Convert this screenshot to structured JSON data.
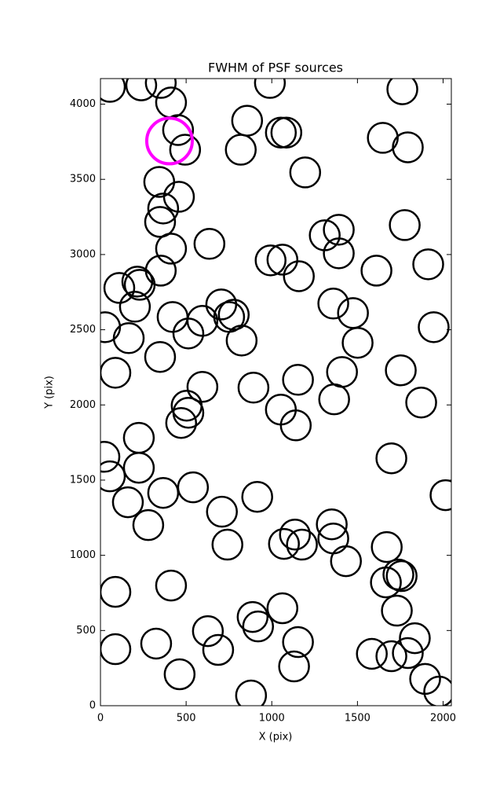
{
  "chart_data": {
    "type": "scatter",
    "title": "FWHM of PSF sources",
    "xlabel": "X (pix)",
    "ylabel": "Y (pix)",
    "xlim": [
      0,
      2048
    ],
    "ylim": [
      0,
      4170
    ],
    "xticks": [
      0,
      500,
      1000,
      1500,
      2000
    ],
    "yticks": [
      0,
      500,
      1000,
      1500,
      2000,
      2500,
      3000,
      3500,
      4000
    ],
    "grid": false,
    "series": [
      {
        "color": "#000000",
        "x": [
          55,
          238,
          352,
          412,
          989,
          1762,
          453,
          856,
          1053,
          1085,
          1648,
          1794,
          494,
          819,
          1195,
          343,
          366,
          458,
          348,
          412,
          636,
          1309,
          1391,
          1391,
          1776,
          1062,
          993,
          1913,
          1611,
          1158,
          352,
          110,
          215,
          229,
          201,
          1359,
          1474,
          421,
          705,
          751,
          513,
          595,
          778,
          824,
          27,
          165,
          1945,
          1501,
          348,
          87,
          1753,
          1153,
          1410,
          595,
          503,
          513,
          471,
          893,
          1053,
          1140,
          1364,
          1872,
          224,
          23,
          55,
          1698,
          224,
          540,
          366,
          160,
          915,
          709,
          279,
          2014,
          1350,
          1359,
          1135,
          1071,
          1176,
          741,
          1671,
          1433,
          87,
          412,
          1666,
          1739,
          1758,
          1730,
          888,
          1062,
          1835,
          627,
          687,
          920,
          87,
          325,
          1153,
          1794,
          1584,
          1698,
          1130,
          462,
          1895,
          1977,
          879
        ],
        "y": [
          4115,
          4125,
          4141,
          4011,
          4141,
          4099,
          3828,
          3890,
          3811,
          3811,
          3776,
          3713,
          3697,
          3697,
          3546,
          3483,
          3306,
          3384,
          3217,
          3039,
          3071,
          3128,
          3165,
          3008,
          3196,
          2966,
          2961,
          2935,
          2893,
          2856,
          2893,
          2778,
          2820,
          2799,
          2653,
          2674,
          2611,
          2585,
          2668,
          2585,
          2475,
          2559,
          2600,
          2428,
          2517,
          2444,
          2517,
          2413,
          2319,
          2214,
          2230,
          2167,
          2219,
          2120,
          1995,
          1948,
          1880,
          2115,
          1969,
          1864,
          2037,
          2016,
          1781,
          1655,
          1525,
          1645,
          1582,
          1452,
          1415,
          1353,
          1389,
          1290,
          1201,
          1400,
          1206,
          1112,
          1138,
          1076,
          1071,
          1071,
          1055,
          961,
          757,
          799,
          820,
          872,
          862,
          632,
          590,
          648,
          449,
          496,
          371,
          527,
          376,
          413,
          423,
          350,
          345,
          329,
          261,
          209,
          178,
          94,
          68
        ]
      },
      {
        "color": "#ff00ff",
        "x": [
          403
        ],
        "y": [
          3755
        ]
      }
    ]
  }
}
